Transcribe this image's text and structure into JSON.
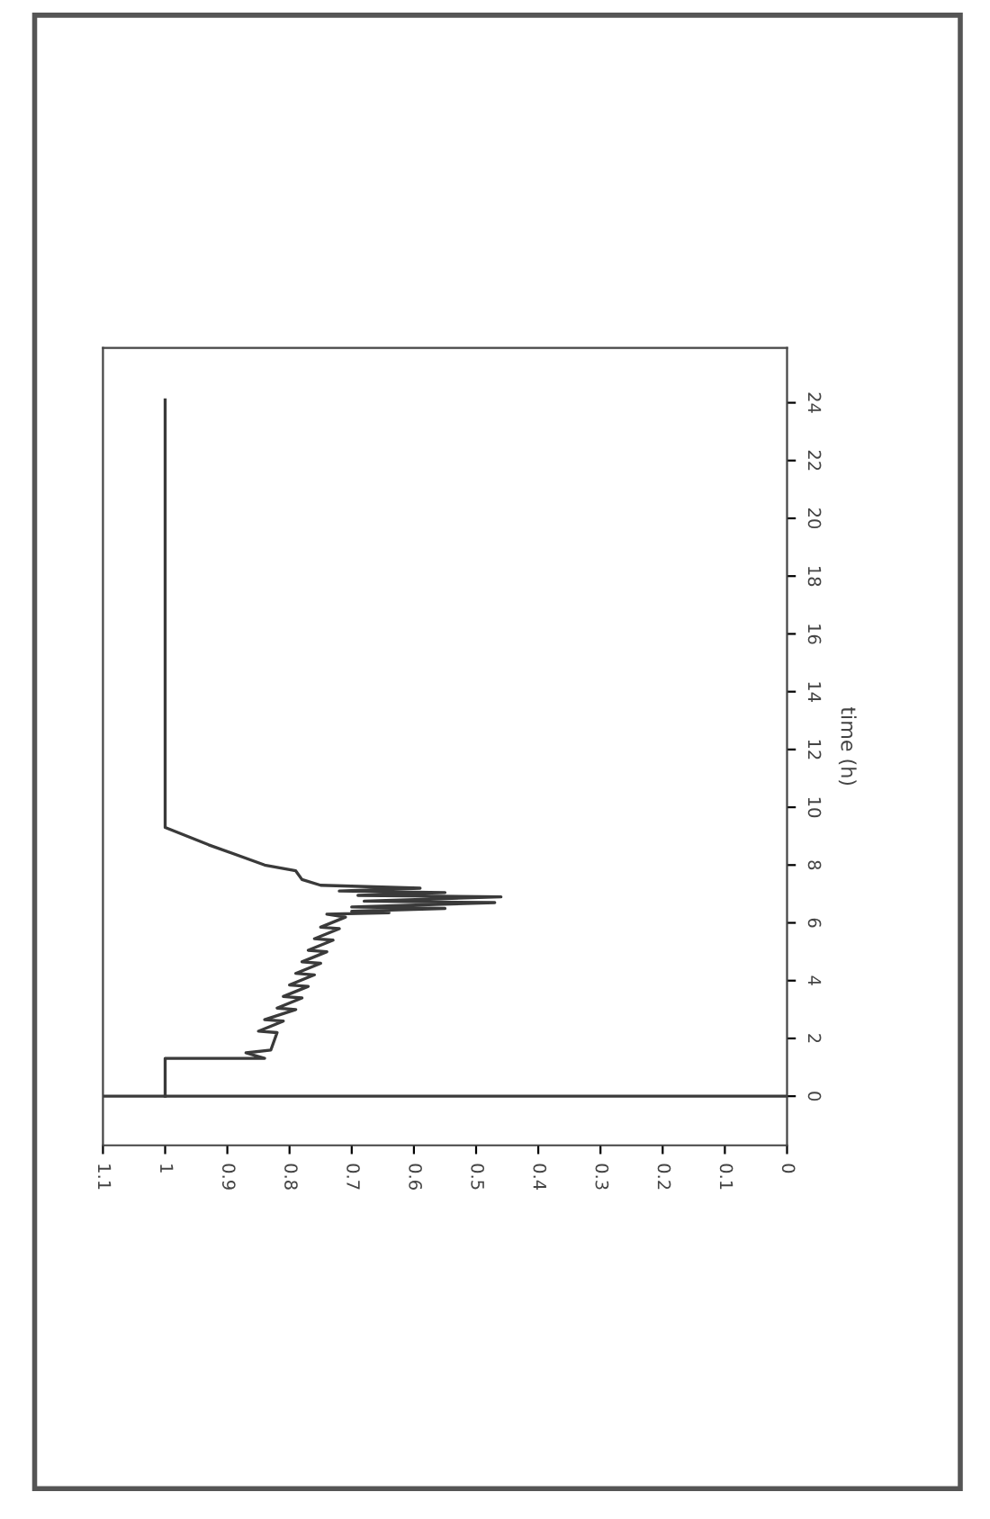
{
  "chart_data": {
    "type": "line",
    "ylabel": "time (h)",
    "series": [
      {
        "color": "#3a3a3a",
        "x": [
          1.0,
          1.0,
          0.84,
          0.87,
          0.83,
          0.82,
          0.85,
          0.81,
          0.84,
          0.79,
          0.82,
          0.78,
          0.81,
          0.77,
          0.8,
          0.76,
          0.79,
          0.75,
          0.78,
          0.74,
          0.77,
          0.73,
          0.76,
          0.72,
          0.75,
          0.71,
          0.74,
          0.64,
          0.7,
          0.55,
          0.7,
          0.47,
          0.68,
          0.46,
          0.69,
          0.55,
          0.72,
          0.59,
          0.75,
          0.78,
          0.79,
          0.84,
          0.93,
          1.0,
          1.0
        ],
        "values": [
          0,
          1.31,
          1.31,
          1.5,
          1.6,
          2.2,
          2.25,
          2.6,
          2.65,
          3.0,
          3.05,
          3.4,
          3.45,
          3.8,
          3.85,
          4.2,
          4.25,
          4.6,
          4.65,
          5.0,
          5.05,
          5.4,
          5.45,
          5.8,
          5.85,
          6.2,
          6.3,
          6.35,
          6.4,
          6.5,
          6.55,
          6.7,
          6.75,
          6.9,
          6.95,
          7.05,
          7.1,
          7.2,
          7.3,
          7.5,
          7.8,
          8.0,
          8.7,
          9.3,
          24.1
        ]
      }
    ],
    "xlim": [
      1.1,
      0
    ],
    "xticks": [
      1.1,
      1,
      0.9,
      0.8,
      0.7,
      0.6,
      0.5,
      0.4,
      0.3,
      0.2,
      0.1,
      0
    ],
    "ylim": [
      -1.7,
      25.9
    ],
    "yticks": [
      0,
      2,
      4,
      6,
      8,
      10,
      12,
      14,
      16,
      18,
      20,
      22,
      24
    ],
    "ref_lines": [
      {
        "axis": "y",
        "value": 0,
        "color": "#3a3a3a"
      }
    ],
    "grid": false,
    "marker": "none",
    "line_style": "solid"
  }
}
